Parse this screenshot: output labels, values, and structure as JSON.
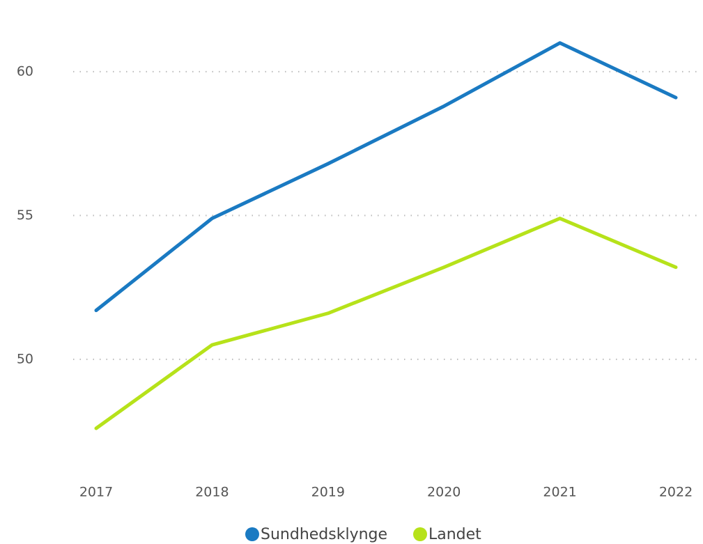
{
  "chart_data": {
    "type": "line",
    "categories": [
      "2017",
      "2018",
      "2019",
      "2020",
      "2021",
      "2022"
    ],
    "series": [
      {
        "name": "Sundhedsklynge",
        "color": "#1a7ac2",
        "values": [
          51.7,
          54.9,
          56.8,
          58.8,
          61.0,
          59.1
        ]
      },
      {
        "name": "Landet",
        "color": "#b6e21a",
        "values": [
          47.6,
          50.5,
          51.6,
          53.2,
          54.9,
          53.2
        ]
      }
    ],
    "ylim": [
      46,
      61.5
    ],
    "yticks": [
      50,
      55,
      60
    ],
    "grid": true,
    "legend": "bottom"
  }
}
